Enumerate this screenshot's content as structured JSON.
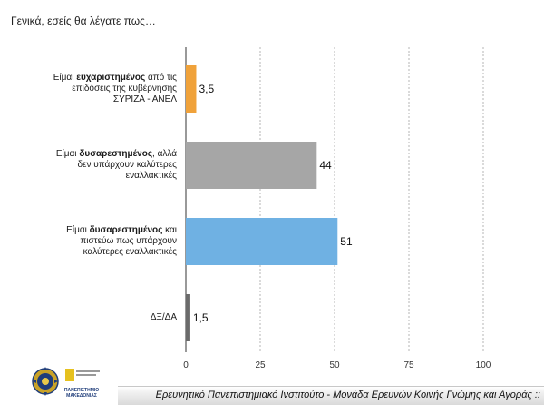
{
  "question": "Γενικά, εσείς θα λέγατε πως…",
  "chart_data": {
    "type": "bar",
    "orientation": "horizontal",
    "categories": [
      {
        "pre": "Είμαι ",
        "bold": "ευχαριστημένος",
        "post": " από τις επιδόσεις  της κυβέρνησης ΣΥΡΙΖΑ - ΑΝΕΛ"
      },
      {
        "pre": "Είμαι ",
        "bold": "δυσαρεστημένος",
        "post": ", αλλά δεν υπάρχουν καλύτερες εναλλακτικές"
      },
      {
        "pre": "Είμαι ",
        "bold": "δυσαρεστημένος",
        "post": " και πιστεύω πως υπάρχουν καλύτερες εναλλακτικές"
      },
      {
        "pre": "ΔΞ/ΔΑ",
        "bold": "",
        "post": ""
      }
    ],
    "values": [
      3.5,
      44,
      51,
      1.5
    ],
    "value_labels": [
      "3,5",
      "44",
      "51",
      "1,5"
    ],
    "colors": [
      "#f0a23a",
      "#a6a6a6",
      "#6fb1e3",
      "#6b6b6b"
    ],
    "xlim": [
      0,
      100
    ],
    "xticks": [
      0,
      25,
      50,
      75,
      100
    ],
    "grid": "vertical-dashed",
    "legend": "none"
  },
  "footer": {
    "text": "Ερευνητικό Πανεπιστημιακό Ινστιτούτο - Μονάδα Ερευνών Κοινής Γνώμης και Αγοράς ::"
  },
  "logo": {
    "caption": "ΠΑΝΕΠΙΣΤΗΜΙΟ ΜΑΚΕΔΟΝΙΑΣ"
  }
}
